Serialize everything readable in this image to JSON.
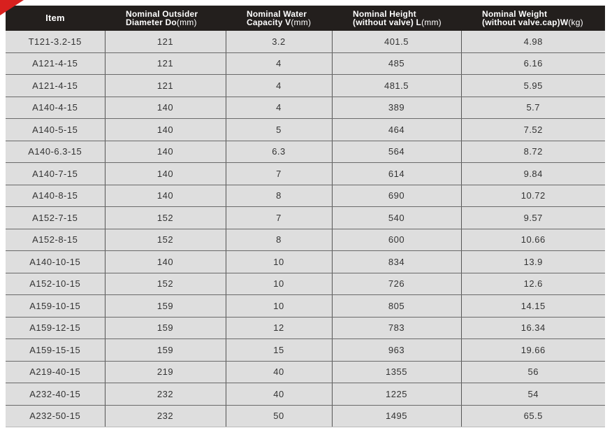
{
  "colors": {
    "header_bg": "#231f1d",
    "row_bg": "#dedede",
    "accent": "#d8201e"
  },
  "headers": [
    {
      "line1": "Item",
      "line2": "",
      "unit": ""
    },
    {
      "line1": "Nominal Outsider",
      "line2": "Diameter Do",
      "unit": "(mm)"
    },
    {
      "line1": "Nominal Water",
      "line2": "Capacity V",
      "unit": "(mm)"
    },
    {
      "line1": "Nominal Height",
      "line2": "(without valve) L",
      "unit": "(mm)"
    },
    {
      "line1": "Nominal Weight",
      "line2": "(without valve.cap)W",
      "unit": "(kg)"
    }
  ],
  "rows": [
    [
      "T121-3.2-15",
      "121",
      "3.2",
      "401.5",
      "4.98"
    ],
    [
      "A121-4-15",
      "121",
      "4",
      "485",
      "6.16"
    ],
    [
      "A121-4-15",
      "121",
      "4",
      "481.5",
      "5.95"
    ],
    [
      "A140-4-15",
      "140",
      "4",
      "389",
      "5.7"
    ],
    [
      "A140-5-15",
      "140",
      "5",
      "464",
      "7.52"
    ],
    [
      "A140-6.3-15",
      "140",
      "6.3",
      "564",
      "8.72"
    ],
    [
      "A140-7-15",
      "140",
      "7",
      "614",
      "9.84"
    ],
    [
      "A140-8-15",
      "140",
      "8",
      "690",
      "10.72"
    ],
    [
      "A152-7-15",
      "152",
      "7",
      "540",
      "9.57"
    ],
    [
      "A152-8-15",
      "152",
      "8",
      "600",
      "10.66"
    ],
    [
      "A140-10-15",
      "140",
      "10",
      "834",
      "13.9"
    ],
    [
      "A152-10-15",
      "152",
      "10",
      "726",
      "12.6"
    ],
    [
      "A159-10-15",
      "159",
      "10",
      "805",
      "14.15"
    ],
    [
      "A159-12-15",
      "159",
      "12",
      "783",
      "16.34"
    ],
    [
      "A159-15-15",
      "159",
      "15",
      "963",
      "19.66"
    ],
    [
      "A219-40-15",
      "219",
      "40",
      "1355",
      "56"
    ],
    [
      "A232-40-15",
      "232",
      "40",
      "1225",
      "54"
    ],
    [
      "A232-50-15",
      "232",
      "50",
      "1495",
      "65.5"
    ]
  ]
}
